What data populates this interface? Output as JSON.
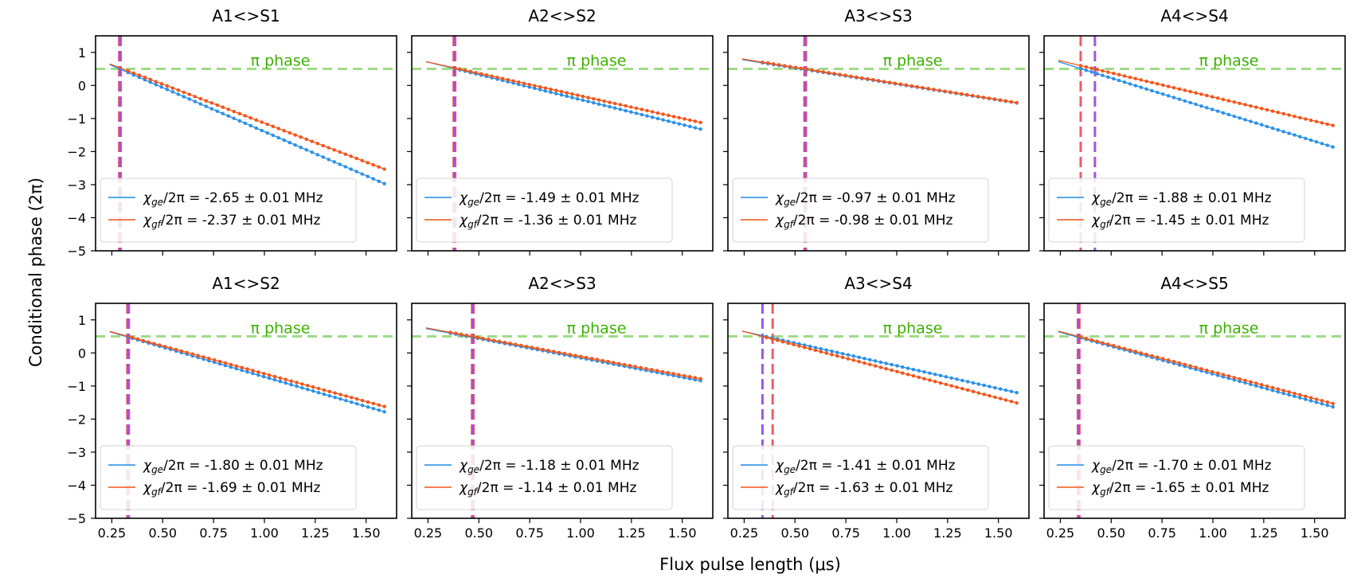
{
  "figure": {
    "ylabel": "Conditional phase (2π)",
    "xlabel": "Flux pulse length (μs)"
  },
  "colors": {
    "ge": "#1f8ce6",
    "ge_dot": "#2b90ea",
    "gf": "#f55416",
    "gf_dot": "#f4541b",
    "pi_line": "#9fdc86",
    "pi_text": "#3cb100",
    "red_vline": "#ef4b56",
    "purple_vline": "#9450e6"
  },
  "chart_data": {
    "type": "line",
    "layout": "2x4 grid of panels, shared x and y axes",
    "xlim": [
      0.17,
      1.65
    ],
    "ylim": [
      -5,
      1.5
    ],
    "xticks": [
      0.25,
      0.5,
      0.75,
      1.0,
      1.25,
      1.5
    ],
    "xtick_labels": [
      "0.25",
      "0.50",
      "0.75",
      "1.00",
      "1.25",
      "1.50"
    ],
    "yticks": [
      1,
      0,
      -1,
      -2,
      -3,
      -4,
      -5
    ],
    "ytick_labels": [
      "1",
      "0",
      "−1",
      "−2",
      "−3",
      "−4",
      "−5"
    ],
    "pi_phase": {
      "y": 0.5,
      "label": "π phase",
      "style": "dashed"
    },
    "legend_location": "lower-left",
    "panels": [
      {
        "title": "A1<>S1",
        "red_vline": 0.29,
        "purple_vline": 0.29,
        "series": [
          {
            "name": "ge",
            "label": "/2π = -2.65 ± 0.01 MHz",
            "x_start": 0.24,
            "y_start": 0.63,
            "x_end": 1.59,
            "y_end": -2.97,
            "dots_from": 0.33
          },
          {
            "name": "gf",
            "label": "/2π = -2.37 ± 0.01 MHz",
            "x_start": 0.24,
            "y_start": 0.65,
            "x_end": 1.59,
            "y_end": -2.53,
            "dots_from": 0.33
          }
        ]
      },
      {
        "title": "A2<>S2",
        "red_vline": 0.38,
        "purple_vline": 0.38,
        "series": [
          {
            "name": "ge",
            "label": "/2π = -1.49 ± 0.01 MHz",
            "x_start": 0.24,
            "y_start": 0.72,
            "x_end": 1.59,
            "y_end": -1.32,
            "dots_from": 0.38
          },
          {
            "name": "gf",
            "label": "/2π = -1.36 ± 0.01 MHz",
            "x_start": 0.24,
            "y_start": 0.72,
            "x_end": 1.59,
            "y_end": -1.12,
            "dots_from": 0.38
          }
        ]
      },
      {
        "title": "A3<>S3",
        "red_vline": 0.55,
        "purple_vline": 0.55,
        "series": [
          {
            "name": "ge",
            "label": "/2π = -0.97 ± 0.01 MHz",
            "x_start": 0.24,
            "y_start": 0.78,
            "x_end": 1.59,
            "y_end": -0.53,
            "dots_from": 0.34
          },
          {
            "name": "gf",
            "label": "/2π = -0.98 ± 0.01 MHz",
            "x_start": 0.24,
            "y_start": 0.8,
            "x_end": 1.59,
            "y_end": -0.52,
            "dots_from": 0.34
          }
        ]
      },
      {
        "title": "A4<>S4",
        "red_vline": 0.35,
        "purple_vline": 0.42,
        "series": [
          {
            "name": "ge",
            "label": "/2π = -1.88 ± 0.01 MHz",
            "x_start": 0.24,
            "y_start": 0.72,
            "x_end": 1.59,
            "y_end": -1.86,
            "dots_from": 0.35
          },
          {
            "name": "gf",
            "label": "/2π = -1.45 ± 0.01 MHz",
            "x_start": 0.24,
            "y_start": 0.76,
            "x_end": 1.59,
            "y_end": -1.21,
            "dots_from": 0.35
          }
        ]
      },
      {
        "title": "A1<>S2",
        "red_vline": 0.33,
        "purple_vline": 0.33,
        "series": [
          {
            "name": "ge",
            "label": "/2π = -1.80 ± 0.01 MHz",
            "x_start": 0.24,
            "y_start": 0.64,
            "x_end": 1.59,
            "y_end": -1.78,
            "dots_from": 0.35
          },
          {
            "name": "gf",
            "label": "/2π = -1.69 ± 0.01 MHz",
            "x_start": 0.24,
            "y_start": 0.65,
            "x_end": 1.59,
            "y_end": -1.62,
            "dots_from": 0.35
          }
        ]
      },
      {
        "title": "A2<>S3",
        "red_vline": 0.47,
        "purple_vline": 0.47,
        "series": [
          {
            "name": "ge",
            "label": "/2π = -1.18 ± 0.01 MHz",
            "x_start": 0.24,
            "y_start": 0.74,
            "x_end": 1.59,
            "y_end": -0.84,
            "dots_from": 0.36
          },
          {
            "name": "gf",
            "label": "/2π = -1.14 ± 0.01 MHz",
            "x_start": 0.24,
            "y_start": 0.76,
            "x_end": 1.59,
            "y_end": -0.78,
            "dots_from": 0.36
          }
        ]
      },
      {
        "title": "A3<>S4",
        "red_vline": 0.39,
        "purple_vline": 0.34,
        "series": [
          {
            "name": "ge",
            "label": "/2π = -1.41 ± 0.01 MHz",
            "x_start": 0.24,
            "y_start": 0.66,
            "x_end": 1.59,
            "y_end": -1.2,
            "dots_from": 0.36
          },
          {
            "name": "gf",
            "label": "/2π = -1.63 ± 0.01 MHz",
            "x_start": 0.24,
            "y_start": 0.66,
            "x_end": 1.59,
            "y_end": -1.51,
            "dots_from": 0.36
          }
        ]
      },
      {
        "title": "A4<>S5",
        "red_vline": 0.34,
        "purple_vline": 0.34,
        "series": [
          {
            "name": "ge",
            "label": "/2π = -1.70 ± 0.01 MHz",
            "x_start": 0.24,
            "y_start": 0.64,
            "x_end": 1.59,
            "y_end": -1.63,
            "dots_from": 0.35
          },
          {
            "name": "gf",
            "label": "/2π = -1.65 ± 0.01 MHz",
            "x_start": 0.24,
            "y_start": 0.66,
            "x_end": 1.59,
            "y_end": -1.53,
            "dots_from": 0.35
          }
        ]
      }
    ]
  }
}
